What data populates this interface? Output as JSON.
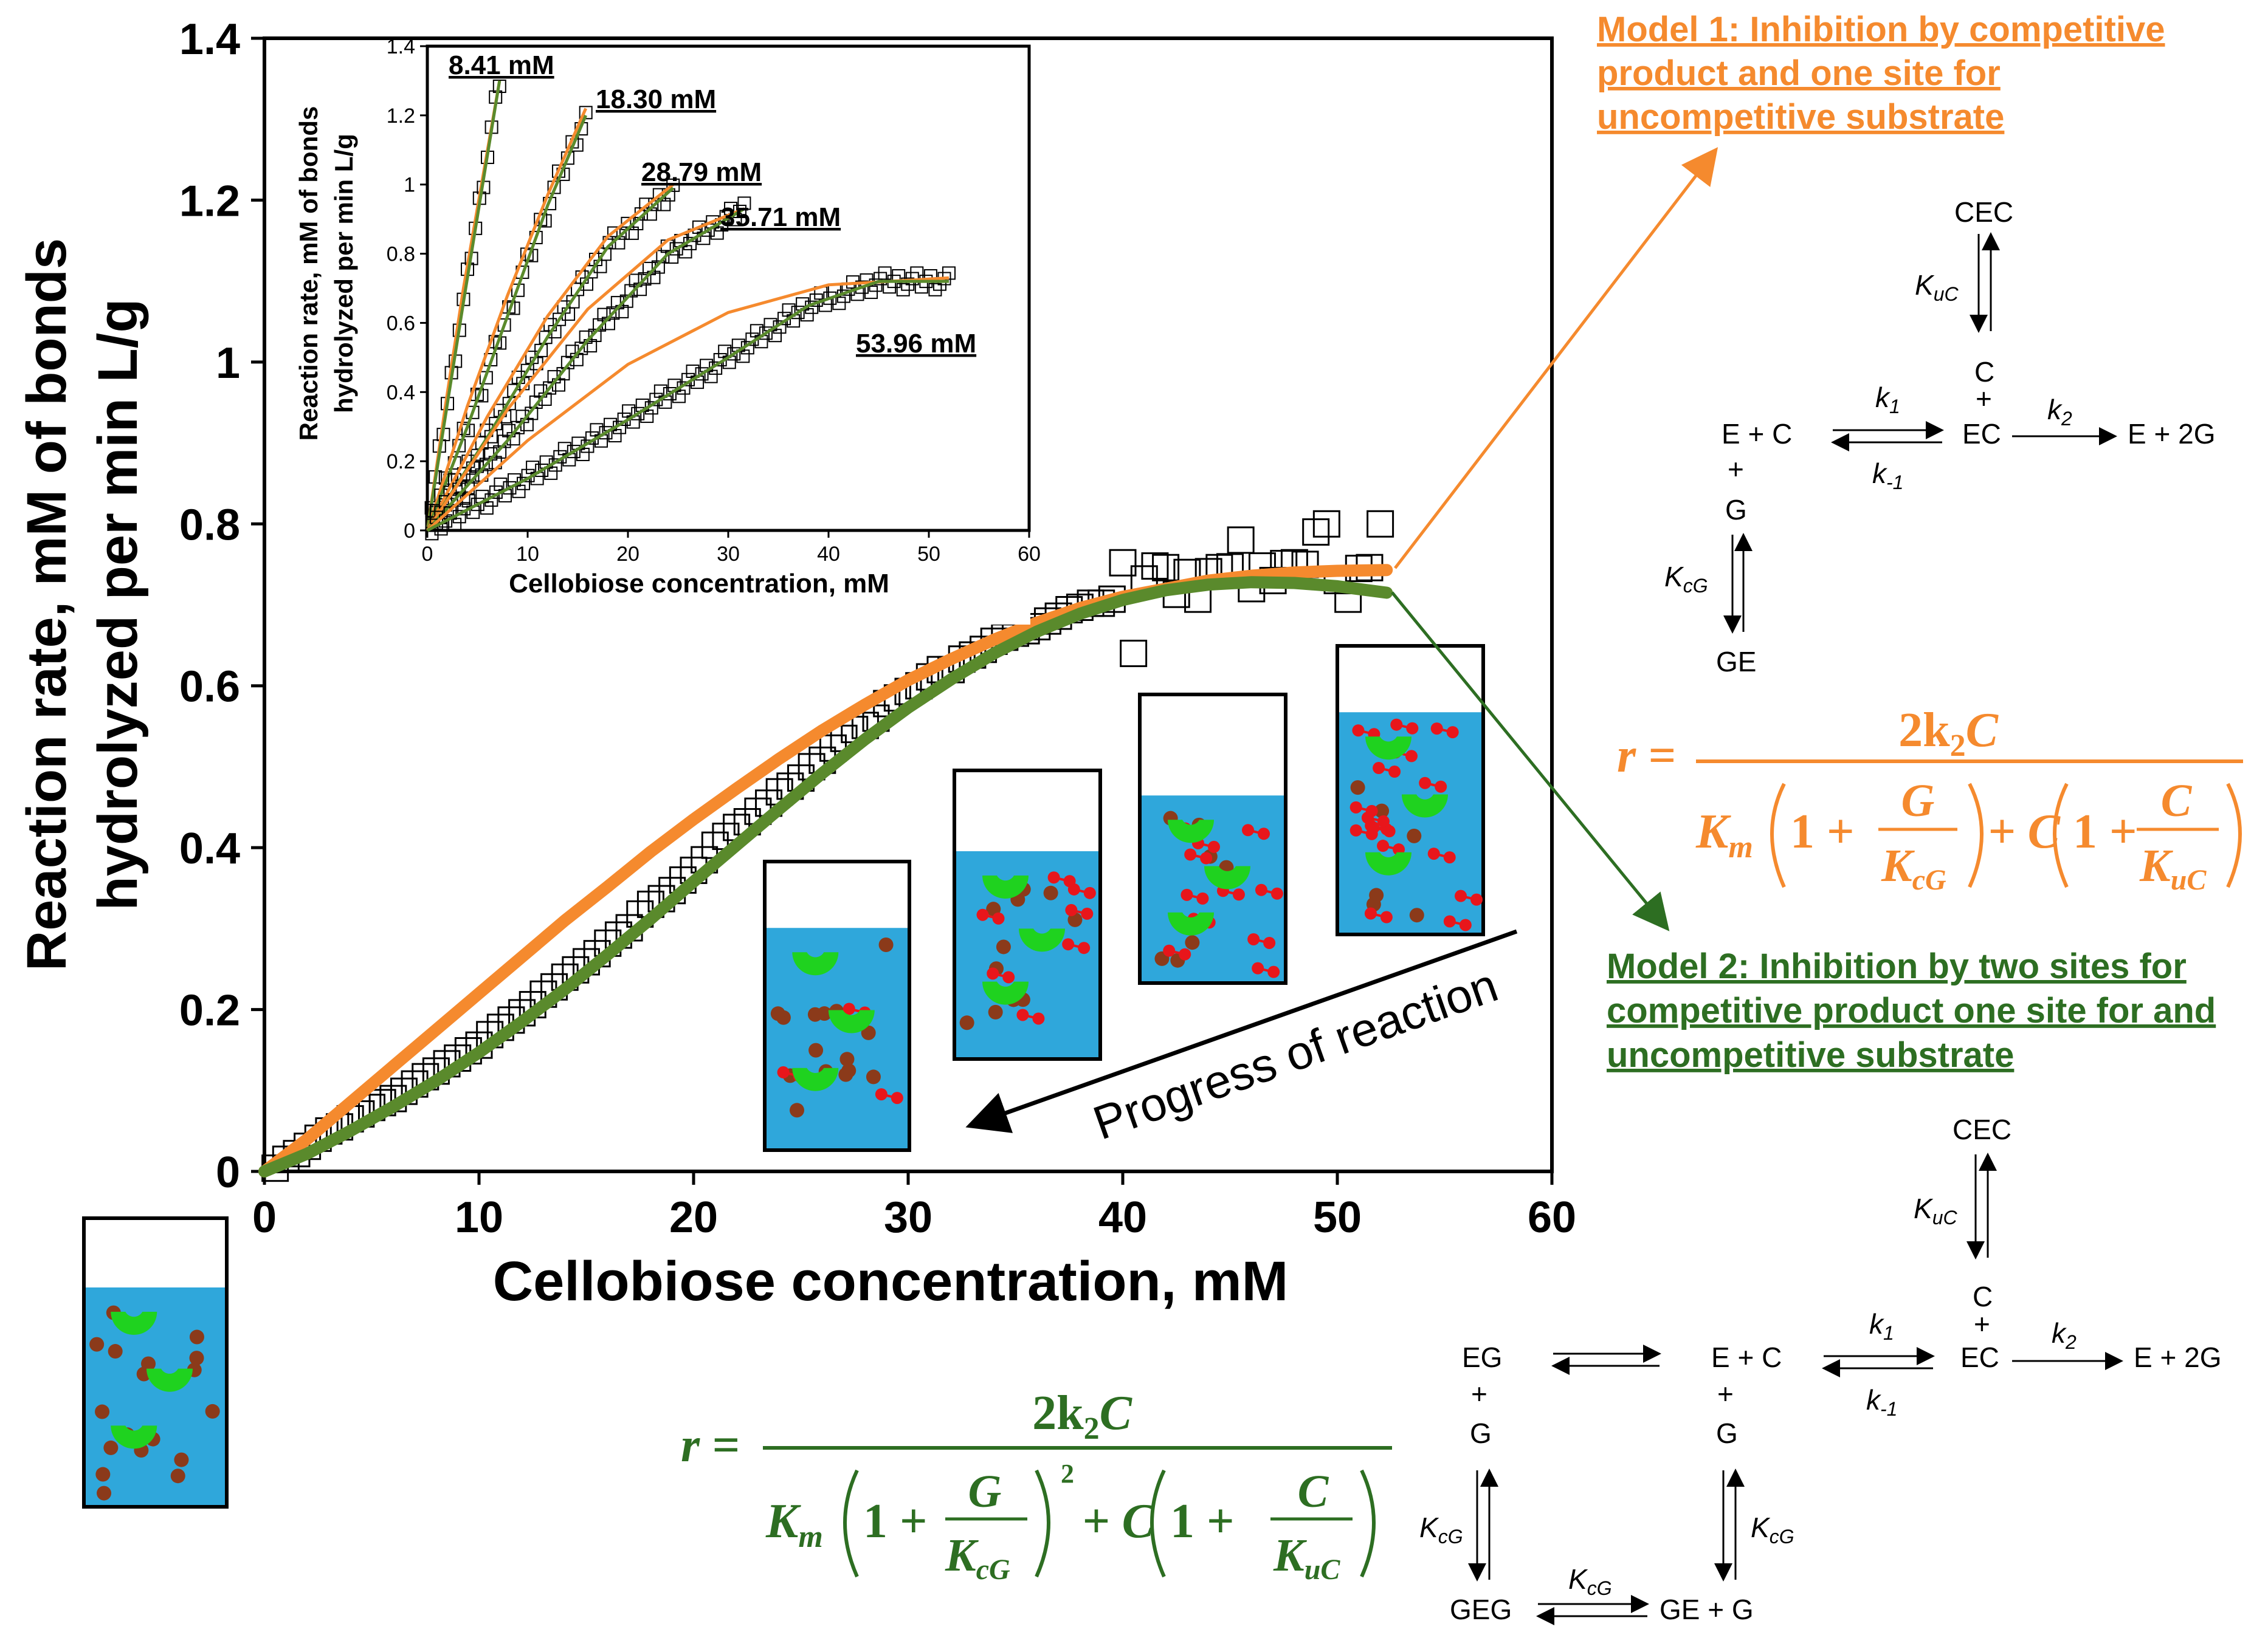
{
  "colors": {
    "model1": "#F58A2E",
    "model2": "#2D6E22",
    "model2_fill": "#5A8A2C",
    "water": "#2FA7DB",
    "cellobiose": "#8B3A1A",
    "glucose": "#E8161B",
    "enzyme": "#1FD21F",
    "axis": "#000000"
  },
  "chart_data": [
    {
      "type": "scatter",
      "role": "main",
      "xlabel": "Cellobiose concentration, mM",
      "ylabel_line1": "Reaction  rate, mM of bonds",
      "ylabel_line2": "hydrolyzed per min L/g",
      "xlim": [
        0,
        60
      ],
      "ylim": [
        0,
        1.4
      ],
      "xticks": [
        "0",
        "10",
        "20",
        "30",
        "40",
        "50",
        "60"
      ],
      "yticks": [
        "0",
        "0.2",
        "0.4",
        "0.6",
        "0.8",
        "1",
        "1.2",
        "1.4"
      ],
      "annotation": "Progress  of reaction",
      "series": [
        {
          "name": "Model 1",
          "kind": "line",
          "x": [
            0,
            2,
            4,
            6,
            8,
            10,
            12,
            14,
            16,
            18,
            20,
            22,
            24,
            26,
            28,
            30,
            32,
            34,
            36,
            38,
            40,
            42,
            44,
            46,
            48,
            50,
            52.3
          ],
          "y": [
            0,
            0.04,
            0.085,
            0.13,
            0.175,
            0.22,
            0.265,
            0.31,
            0.352,
            0.395,
            0.435,
            0.473,
            0.51,
            0.545,
            0.577,
            0.607,
            0.633,
            0.657,
            0.678,
            0.696,
            0.71,
            0.72,
            0.73,
            0.736,
            0.74,
            0.742,
            0.743
          ]
        },
        {
          "name": "Model 2",
          "kind": "line",
          "x": [
            0,
            2,
            4,
            6,
            8,
            10,
            12,
            14,
            16,
            18,
            20,
            22,
            24,
            26,
            28,
            30,
            32,
            34,
            36,
            38,
            40,
            42,
            44,
            46,
            48,
            50,
            52.3
          ],
          "y": [
            0,
            0.022,
            0.05,
            0.08,
            0.112,
            0.147,
            0.185,
            0.225,
            0.268,
            0.312,
            0.358,
            0.403,
            0.448,
            0.492,
            0.534,
            0.573,
            0.608,
            0.64,
            0.667,
            0.689,
            0.706,
            0.718,
            0.725,
            0.728,
            0.727,
            0.723,
            0.715
          ]
        },
        {
          "name": "Data",
          "kind": "scatter",
          "x": [
            0.5,
            1,
            1.5,
            2,
            2.5,
            3,
            3.5,
            4,
            4.5,
            5,
            5.5,
            6,
            6.5,
            7,
            7.5,
            8,
            8.5,
            9,
            9.5,
            10,
            10.5,
            11,
            11.5,
            12,
            12.5,
            13,
            13.5,
            14,
            14.5,
            15,
            15.5,
            16,
            16.5,
            17,
            17.5,
            18,
            18.5,
            19,
            19.5,
            20,
            20.5,
            21,
            21.5,
            22,
            22.5,
            23,
            23.5,
            24,
            24.5,
            25,
            25.5,
            26,
            26.5,
            27,
            27.5,
            28,
            28.5,
            29,
            29.5,
            30,
            30.5,
            31,
            31.5,
            32,
            32.5,
            33,
            33.5,
            34,
            34.5,
            35,
            35.5,
            36,
            36.5,
            37,
            37.5,
            38,
            38.5,
            39,
            39.5,
            40,
            40.5,
            41,
            41.5,
            42,
            42.5,
            43,
            43.5,
            44,
            44.5,
            45,
            45.5,
            46,
            46.5,
            47,
            47.5,
            48,
            48.5,
            49,
            49.5,
            50,
            50.5,
            51,
            51.5,
            52
          ],
          "y": [
            0.004,
            0.015,
            0.022,
            0.031,
            0.041,
            0.05,
            0.055,
            0.065,
            0.071,
            0.079,
            0.085,
            0.09,
            0.099,
            0.108,
            0.117,
            0.124,
            0.133,
            0.14,
            0.149,
            0.156,
            0.169,
            0.178,
            0.187,
            0.196,
            0.206,
            0.219,
            0.228,
            0.24,
            0.249,
            0.259,
            0.269,
            0.282,
            0.292,
            0.301,
            0.318,
            0.33,
            0.337,
            0.347,
            0.36,
            0.372,
            0.385,
            0.403,
            0.414,
            0.425,
            0.432,
            0.445,
            0.455,
            0.469,
            0.476,
            0.486,
            0.5,
            0.508,
            0.523,
            0.535,
            0.546,
            0.551,
            0.56,
            0.578,
            0.585,
            0.593,
            0.6,
            0.611,
            0.62,
            0.62,
            0.633,
            0.638,
            0.645,
            0.655,
            0.66,
            0.665,
            0.668,
            0.673,
            0.68,
            0.686,
            0.694,
            0.697,
            0.702,
            0.702,
            0.707,
            0.752,
            0.64,
            0.732,
            0.748,
            0.746,
            0.713,
            0.74,
            0.707,
            0.741,
            0.746,
            0.747,
            0.78,
            0.72,
            0.748,
            0.73,
            0.751,
            0.752,
            0.75,
            0.79,
            0.8,
            0.73,
            0.707,
            0.745,
            0.746,
            0.8
          ]
        }
      ]
    },
    {
      "type": "scatter",
      "role": "inset",
      "xlabel": "Cellobiose concentration, mM",
      "ylabel_line1": "Reaction  rate, mM of bonds",
      "ylabel_line2": "hydrolyzed per min L/g",
      "xlim": [
        0,
        60
      ],
      "ylim": [
        0,
        1.4
      ],
      "xticks": [
        "0",
        "10",
        "20",
        "30",
        "40",
        "50",
        "60"
      ],
      "yticks": [
        "0",
        "0.2",
        "0.4",
        "0.6",
        "0.8",
        "1",
        "1.2",
        "1.4"
      ],
      "curves": [
        {
          "label": "8.41 mM",
          "xmax": 7.2,
          "ymax": 1.3,
          "m1": [
            [
              0,
              0
            ],
            [
              1.8,
              0.36
            ],
            [
              3.6,
              0.7
            ],
            [
              5.4,
              1.0
            ],
            [
              7.2,
              1.3
            ]
          ],
          "m2": [
            [
              0,
              0
            ],
            [
              1.8,
              0.33
            ],
            [
              3.6,
              0.66
            ],
            [
              5.4,
              0.98
            ],
            [
              7.2,
              1.3
            ]
          ]
        },
        {
          "label": "18.30 mM",
          "xmax": 15.8,
          "ymax": 1.22,
          "m1": [
            [
              0,
              0
            ],
            [
              4,
              0.36
            ],
            [
              8,
              0.68
            ],
            [
              12,
              0.97
            ],
            [
              15.8,
              1.22
            ]
          ],
          "m2": [
            [
              0,
              0
            ],
            [
              4,
              0.3
            ],
            [
              8,
              0.62
            ],
            [
              12,
              0.94
            ],
            [
              15.8,
              1.2
            ]
          ]
        },
        {
          "label": "28.79 mM",
          "xmax": 24.5,
          "ymax": 1.0,
          "m1": [
            [
              0,
              0
            ],
            [
              6,
              0.33
            ],
            [
              12,
              0.62
            ],
            [
              18,
              0.85
            ],
            [
              24.5,
              1.0
            ]
          ],
          "m2": [
            [
              0,
              0
            ],
            [
              6,
              0.27
            ],
            [
              12,
              0.56
            ],
            [
              18,
              0.82
            ],
            [
              24.5,
              0.99
            ]
          ]
        },
        {
          "label": "35.71 mM",
          "xmax": 31.6,
          "ymax": 0.93,
          "m1": [
            [
              0,
              0
            ],
            [
              8,
              0.35
            ],
            [
              16,
              0.64
            ],
            [
              24,
              0.84
            ],
            [
              31.6,
              0.93
            ]
          ],
          "m2": [
            [
              0,
              0
            ],
            [
              8,
              0.26
            ],
            [
              16,
              0.55
            ],
            [
              24,
              0.8
            ],
            [
              31.6,
              0.93
            ]
          ]
        },
        {
          "label": "53.96 mM",
          "xmax": 52,
          "ymax": 0.73,
          "m1": [
            [
              0,
              0
            ],
            [
              10,
              0.26
            ],
            [
              20,
              0.48
            ],
            [
              30,
              0.63
            ],
            [
              40,
              0.71
            ],
            [
              52,
              0.73
            ]
          ],
          "m2": [
            [
              0,
              0
            ],
            [
              10,
              0.15
            ],
            [
              20,
              0.32
            ],
            [
              30,
              0.5
            ],
            [
              38,
              0.65
            ],
            [
              45,
              0.72
            ],
            [
              52,
              0.72
            ]
          ]
        }
      ]
    }
  ],
  "model1": {
    "title_line1": "Model 1: Inhibition by competitive",
    "title_line2": "product and one site for",
    "title_line3": "uncompetitive substrate",
    "scheme": {
      "cec": "CEC",
      "kuc": "K",
      "kuc_sub": "uC",
      "c": "C",
      "plus": "+",
      "ec": "EC",
      "e_plus_c": "E + C",
      "e_plus_2g": "E + 2G",
      "k1": "k",
      "k1_sub": "1",
      "km1": "k",
      "km1_sub": "-1",
      "k2": "k",
      "k2_sub": "2",
      "g": "G",
      "kcg": "K",
      "kcg_sub": "cG",
      "ge": "GE"
    },
    "equation": {
      "lhs": "r =",
      "numerator": "2k",
      "num_sub": "2",
      "num_c": "C",
      "km": "K",
      "km_sub": "m",
      "one_plus": "1 +",
      "g": "G",
      "kcg": "K",
      "kcg_sub": "cG",
      "plus_c": "+ C",
      "c": "C",
      "kuc": "K",
      "kuc_sub": "uC"
    }
  },
  "model2": {
    "title_line1": "Model 2: Inhibition by two sites for",
    "title_line2": "competitive product one site for and",
    "title_line3": "uncompetitive substrate",
    "scheme": {
      "cec": "CEC",
      "kuc": "K",
      "kuc_sub": "uC",
      "c": "C",
      "plus": "+",
      "ec": "EC",
      "eg": "EG",
      "g": "G",
      "e_plus_c": "E + C",
      "e_plus_2g": "E + 2G",
      "k1": "k",
      "k1_sub": "1",
      "km1": "k",
      "km1_sub": "-1",
      "k2": "k",
      "k2_sub": "2",
      "kcg": "K",
      "kcg_sub": "cG",
      "geg": "GEG",
      "ge_plus_g": "GE + G"
    },
    "equation": {
      "lhs": "r =",
      "numerator": "2k",
      "num_sub": "2",
      "num_c": "C",
      "km": "K",
      "km_sub": "m",
      "one_plus": "1 +",
      "g": "G",
      "kcg": "K",
      "kcg_sub": "cG",
      "square": "2",
      "plus_c": "+ C",
      "c": "C",
      "kuc": "K",
      "kuc_sub": "uC"
    }
  }
}
